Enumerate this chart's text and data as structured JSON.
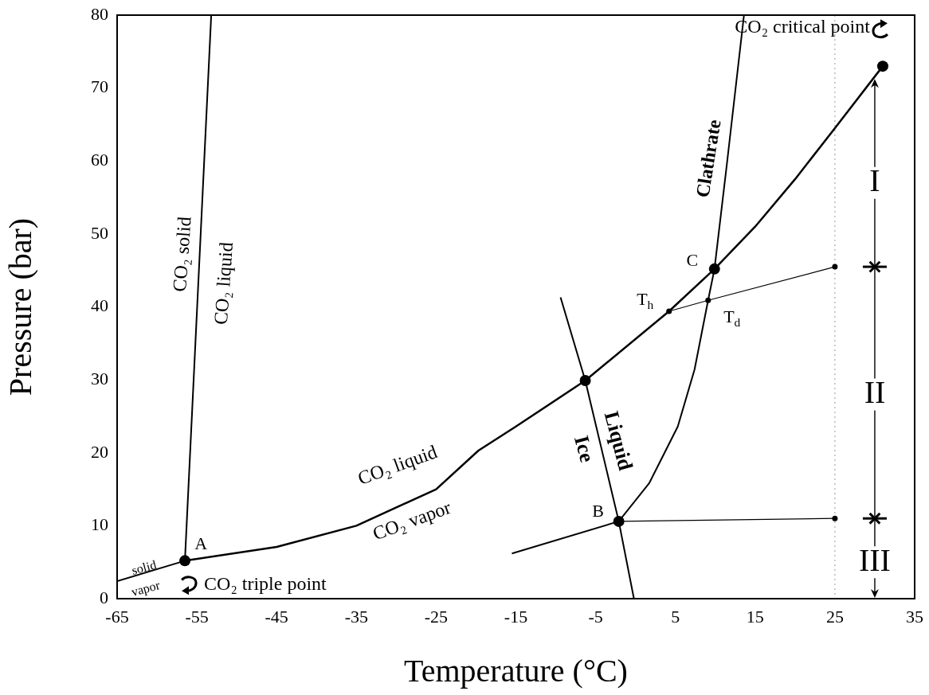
{
  "chart_data": {
    "type": "line",
    "xlabel": "Temperature (°C)",
    "ylabel": "Pressure (bar)",
    "xlim": [
      -65,
      35
    ],
    "xticks": [
      -65,
      -55,
      -45,
      -35,
      -25,
      -15,
      -5,
      5,
      15,
      25,
      35
    ],
    "ylim": [
      0,
      80
    ],
    "yticks": [
      0,
      10,
      20,
      30,
      40,
      50,
      60,
      70,
      80
    ],
    "grid": false,
    "legend": false,
    "marker": "none",
    "line_style": "solid",
    "series": [
      {
        "color": "#000000",
        "x": [
          -65,
          -56.5
        ],
        "values": [
          2.4,
          5.2
        ]
      },
      {
        "color": "#000000",
        "x": [
          -56.5,
          -45,
          -35,
          -25,
          -19.7,
          -15,
          -6.3,
          4.2,
          9.9,
          15,
          20,
          25,
          31
        ],
        "values": [
          5.2,
          7.1,
          10,
          15,
          20.3,
          23.6,
          29.9,
          39.4,
          45.2,
          51,
          57.5,
          64.5,
          73
        ]
      },
      {
        "color": "#000000",
        "x": [
          -56.5,
          -53.2
        ],
        "values": [
          5.2,
          80
        ]
      },
      {
        "color": "#000000",
        "x": [
          -9.4,
          -6.3,
          -2.1,
          -0.2
        ],
        "values": [
          41.3,
          29.9,
          10.6,
          0
        ]
      },
      {
        "color": "#000000",
        "x": [
          -15.5,
          -2.1
        ],
        "values": [
          6.2,
          10.6
        ]
      },
      {
        "color": "#000000",
        "x": [
          -2.1,
          1.7,
          5.3,
          7.4,
          9.1,
          9.9,
          11.5,
          13.6
        ],
        "values": [
          10.6,
          15.8,
          23.6,
          31.4,
          40.9,
          45.2,
          60,
          80
        ]
      },
      {
        "color": "#000000",
        "x": [
          4.2,
          9.1,
          25
        ],
        "values": [
          39.4,
          40.9,
          45.5
        ]
      },
      {
        "color": "#000000",
        "x": [
          -2.1,
          25
        ],
        "values": [
          10.6,
          11
        ]
      },
      {
        "color": "#000000",
        "x": [
          28.5,
          31.5
        ],
        "values": [
          45.5,
          45.5
        ]
      },
      {
        "color": "#000000",
        "x": [
          28.5,
          31.5
        ],
        "values": [
          11,
          11
        ]
      },
      {
        "type": "scatter",
        "marker": "circle",
        "color": "#000000",
        "x": [
          -56.5,
          -6.3,
          -2.1,
          9.9,
          31
        ],
        "values": [
          5.2,
          29.9,
          10.6,
          45.2,
          73
        ]
      },
      {
        "type": "scatter",
        "marker": "circle",
        "color": "#000000",
        "x": [
          4.2,
          9.1,
          25,
          25
        ],
        "values": [
          39.4,
          40.9,
          45.5,
          11
        ]
      },
      {
        "type": "scatter",
        "marker": "cross",
        "color": "#000000",
        "x": [
          30,
          30
        ],
        "values": [
          45.5,
          11
        ]
      }
    ],
    "ref_lines": [
      {
        "axis": "x",
        "value": 25,
        "color": "#999999",
        "line_style": "dotted"
      }
    ],
    "annotations": [
      "CO₂ solid",
      "CO₂ liquid",
      "CO₂ liquid",
      "CO₂ vapor",
      "solid",
      "vapor",
      {
        "text": "CO₂ triple point",
        "x": -56.5,
        "y": 5.2
      },
      {
        "text": "CO₂ critical point",
        "x": 31,
        "y": 73
      },
      "Clathrate",
      "Ice",
      "Liquid",
      {
        "text": "A",
        "x": -56.5,
        "y": 5.2
      },
      {
        "text": "B",
        "x": -2.1,
        "y": 10.6
      },
      {
        "text": "C",
        "x": 9.9,
        "y": 45.2
      },
      {
        "text": "T$_{h}$",
        "x": 4.2,
        "y": 39.4
      },
      {
        "text": "T$_{d}$",
        "x": 9.1,
        "y": 40.9
      },
      "I",
      "II",
      "III"
    ]
  }
}
